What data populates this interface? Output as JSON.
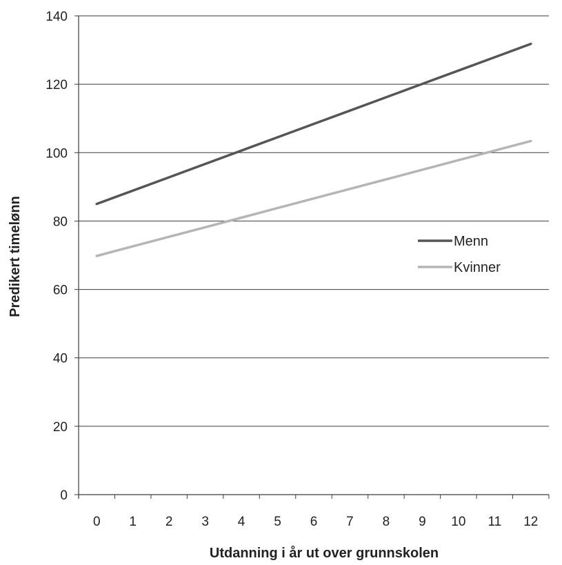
{
  "chart_data": {
    "type": "line",
    "title": "",
    "xlabel": "Utdanning i år ut over grunnskolen",
    "ylabel": "Predikert timelønn",
    "x": [
      0,
      1,
      2,
      3,
      4,
      5,
      6,
      7,
      8,
      9,
      10,
      11,
      12
    ],
    "xlim": [
      0,
      12
    ],
    "ylim": [
      0,
      140
    ],
    "yticks": [
      0,
      20,
      40,
      60,
      80,
      100,
      120,
      140
    ],
    "grid": "horizontal",
    "legend_position": "right",
    "series": [
      {
        "name": "Menn",
        "color": "#555555",
        "values": [
          85.0,
          88.9,
          92.8,
          96.7,
          100.6,
          104.5,
          108.4,
          112.3,
          116.2,
          120.1,
          124.0,
          127.9,
          131.8
        ]
      },
      {
        "name": "Kvinner",
        "color": "#b5b5b5",
        "values": [
          69.8,
          72.6,
          75.4,
          78.2,
          81.0,
          83.8,
          86.6,
          89.4,
          92.2,
          95.0,
          97.8,
          100.6,
          103.4
        ]
      }
    ]
  }
}
